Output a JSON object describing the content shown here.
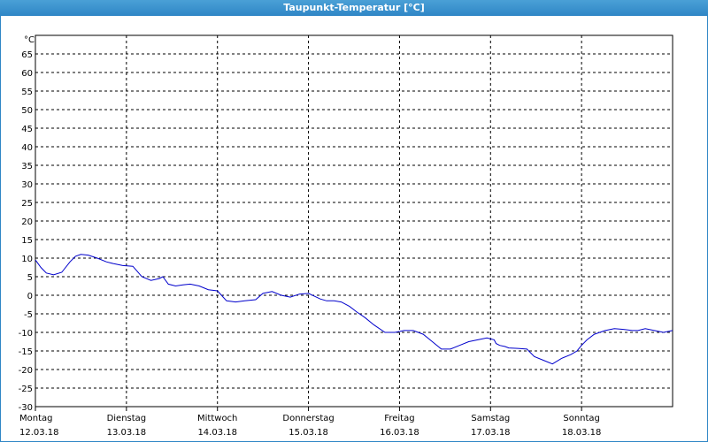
{
  "window": {
    "title": "Taupunkt-Temperatur [°C]"
  },
  "chart_data": {
    "type": "line",
    "title": "Taupunkt-Temperatur [°C]",
    "yunit": "°C",
    "ylim": [
      -30,
      70
    ],
    "yticks": [
      65,
      60,
      55,
      50,
      45,
      40,
      35,
      30,
      25,
      20,
      15,
      10,
      5,
      0,
      -5,
      -10,
      -15,
      -20,
      -25,
      -30
    ],
    "xlim": [
      0,
      7
    ],
    "grid": true,
    "line_color": "#0000cc",
    "days": [
      {
        "name": "Montag",
        "date": "12.03.18"
      },
      {
        "name": "Dienstag",
        "date": "13.03.18"
      },
      {
        "name": "Mittwoch",
        "date": "14.03.18"
      },
      {
        "name": "Donnerstag",
        "date": "15.03.18"
      },
      {
        "name": "Freitag",
        "date": "16.03.18"
      },
      {
        "name": "Samstag",
        "date": "17.03.18"
      },
      {
        "name": "Sonntag",
        "date": "18.03.18"
      }
    ],
    "series": [
      {
        "x": [
          0.0,
          0.06,
          0.12,
          0.2,
          0.29,
          0.38,
          0.44,
          0.5,
          0.58,
          0.68,
          0.78,
          0.86,
          0.96,
          1.07,
          1.17,
          1.27,
          1.36,
          1.4,
          1.46,
          1.54,
          1.62,
          1.7,
          1.8,
          1.9,
          2.0,
          2.1,
          2.2,
          2.3,
          2.42,
          2.5,
          2.6,
          2.7,
          2.8,
          2.9,
          3.0,
          3.07,
          3.13,
          3.2,
          3.28,
          3.36,
          3.45,
          3.53,
          3.62,
          3.72,
          3.84,
          3.95,
          4.05,
          4.15,
          4.26,
          4.36,
          4.46,
          4.56,
          4.66,
          4.76,
          4.86,
          4.96,
          5.04,
          5.06,
          5.1,
          5.16,
          5.2,
          5.3,
          5.4,
          5.48,
          5.58,
          5.68,
          5.78,
          5.88,
          5.95,
          6.0,
          6.06,
          6.14,
          6.26,
          6.36,
          6.46,
          6.56,
          6.62,
          6.7,
          6.8,
          6.9,
          7.0
        ],
        "y": [
          9.5,
          7.5,
          6.0,
          5.5,
          6.2,
          9.0,
          10.5,
          11.0,
          10.8,
          10.0,
          9.0,
          8.5,
          8.0,
          7.8,
          5.0,
          4.0,
          4.5,
          5.0,
          3.0,
          2.5,
          2.8,
          3.0,
          2.5,
          1.5,
          1.2,
          -1.5,
          -1.8,
          -1.5,
          -1.2,
          0.5,
          1.0,
          0.0,
          -0.5,
          0.3,
          0.5,
          -0.3,
          -1.0,
          -1.5,
          -1.5,
          -1.8,
          -3.0,
          -4.5,
          -6.0,
          -8.0,
          -10.0,
          -10.0,
          -9.5,
          -9.5,
          -10.5,
          -12.5,
          -14.5,
          -14.5,
          -13.5,
          -12.5,
          -12.0,
          -11.5,
          -12.0,
          -13.0,
          -13.5,
          -13.8,
          -14.2,
          -14.3,
          -14.5,
          -16.5,
          -17.5,
          -18.5,
          -17.0,
          -16.0,
          -15.0,
          -13.5,
          -12.0,
          -10.5,
          -9.5,
          -9.0,
          -9.2,
          -9.5,
          -9.5,
          -9.0,
          -9.5,
          -10.0,
          -9.5
        ]
      }
    ]
  }
}
